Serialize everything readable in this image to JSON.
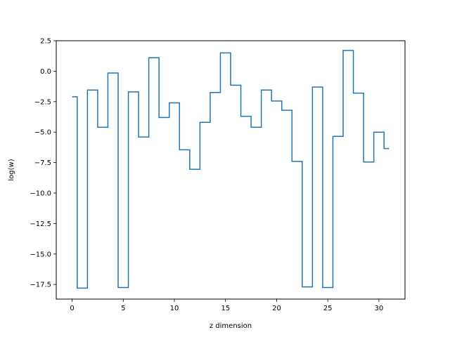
{
  "chart_data": {
    "type": "line",
    "drawstyle": "steps-mid",
    "title": "",
    "xlabel": "z dimension",
    "ylabel": "log(w)",
    "xlim": [
      -1.55,
      32.55
    ],
    "ylim": [
      -18.7,
      2.5
    ],
    "xticks": [
      0,
      5,
      10,
      15,
      20,
      25,
      30
    ],
    "yticks": [
      2.5,
      0.0,
      -2.5,
      -5.0,
      -7.5,
      -10.0,
      -12.5,
      -15.0,
      -17.5
    ],
    "ytick_labels": [
      "2.5",
      "0.0",
      "−2.5",
      "−5.0",
      "−7.5",
      "−10.0",
      "−12.5",
      "−15.0",
      "−17.5"
    ],
    "grid": false,
    "line_color": "#1f77b4",
    "series": [
      {
        "x": [
          0,
          1,
          2,
          3,
          4,
          5,
          6,
          7,
          8,
          9,
          10,
          11,
          12,
          13,
          14,
          15,
          16,
          17,
          18,
          19,
          20,
          21,
          22,
          23,
          24,
          25,
          26,
          27,
          28,
          29,
          30,
          31
        ],
        "values": [
          -2.1,
          -17.8,
          -1.55,
          -4.6,
          -0.15,
          -17.75,
          -1.7,
          -5.4,
          1.1,
          -3.8,
          -2.6,
          -6.45,
          -8.05,
          -4.2,
          -1.75,
          1.5,
          -1.15,
          -3.7,
          -4.6,
          -1.55,
          -2.45,
          -3.2,
          -7.4,
          -17.7,
          -1.3,
          -17.75,
          -5.35,
          1.7,
          -1.8,
          -7.45,
          -5.0,
          -6.35
        ]
      }
    ]
  }
}
